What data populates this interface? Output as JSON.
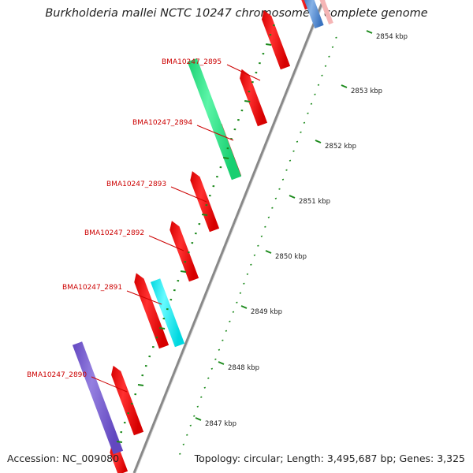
{
  "title": "Burkholderia mallei NCTC 10247 chromosome I, complete genome",
  "footer": {
    "accession": "Accession: NC_009080",
    "summary": "Topology: circular; Length: 3,495,687 bp; Genes: 3,325"
  },
  "colors": {
    "forward_cds": "#ff0000",
    "label_text": "#cc0000",
    "backbone": "#888888",
    "tick": "#1c8a1c",
    "gene_2895": "#2ee88a",
    "gene_2891": "#1ff0f0",
    "gene_2890": "#7a5fd0",
    "gene_top": "#5a8fd0"
  },
  "ruler_labels": [
    "2854 kbp",
    "2853 kbp",
    "2852 kbp",
    "2851 kbp",
    "2850 kbp",
    "2849 kbp",
    "2848 kbp",
    "2847 kbp"
  ],
  "gene_labels": [
    "BMA10247_2895",
    "BMA10247_2894",
    "BMA10247_2893",
    "BMA10247_2892",
    "BMA10247_2891",
    "BMA10247_2890"
  ]
}
